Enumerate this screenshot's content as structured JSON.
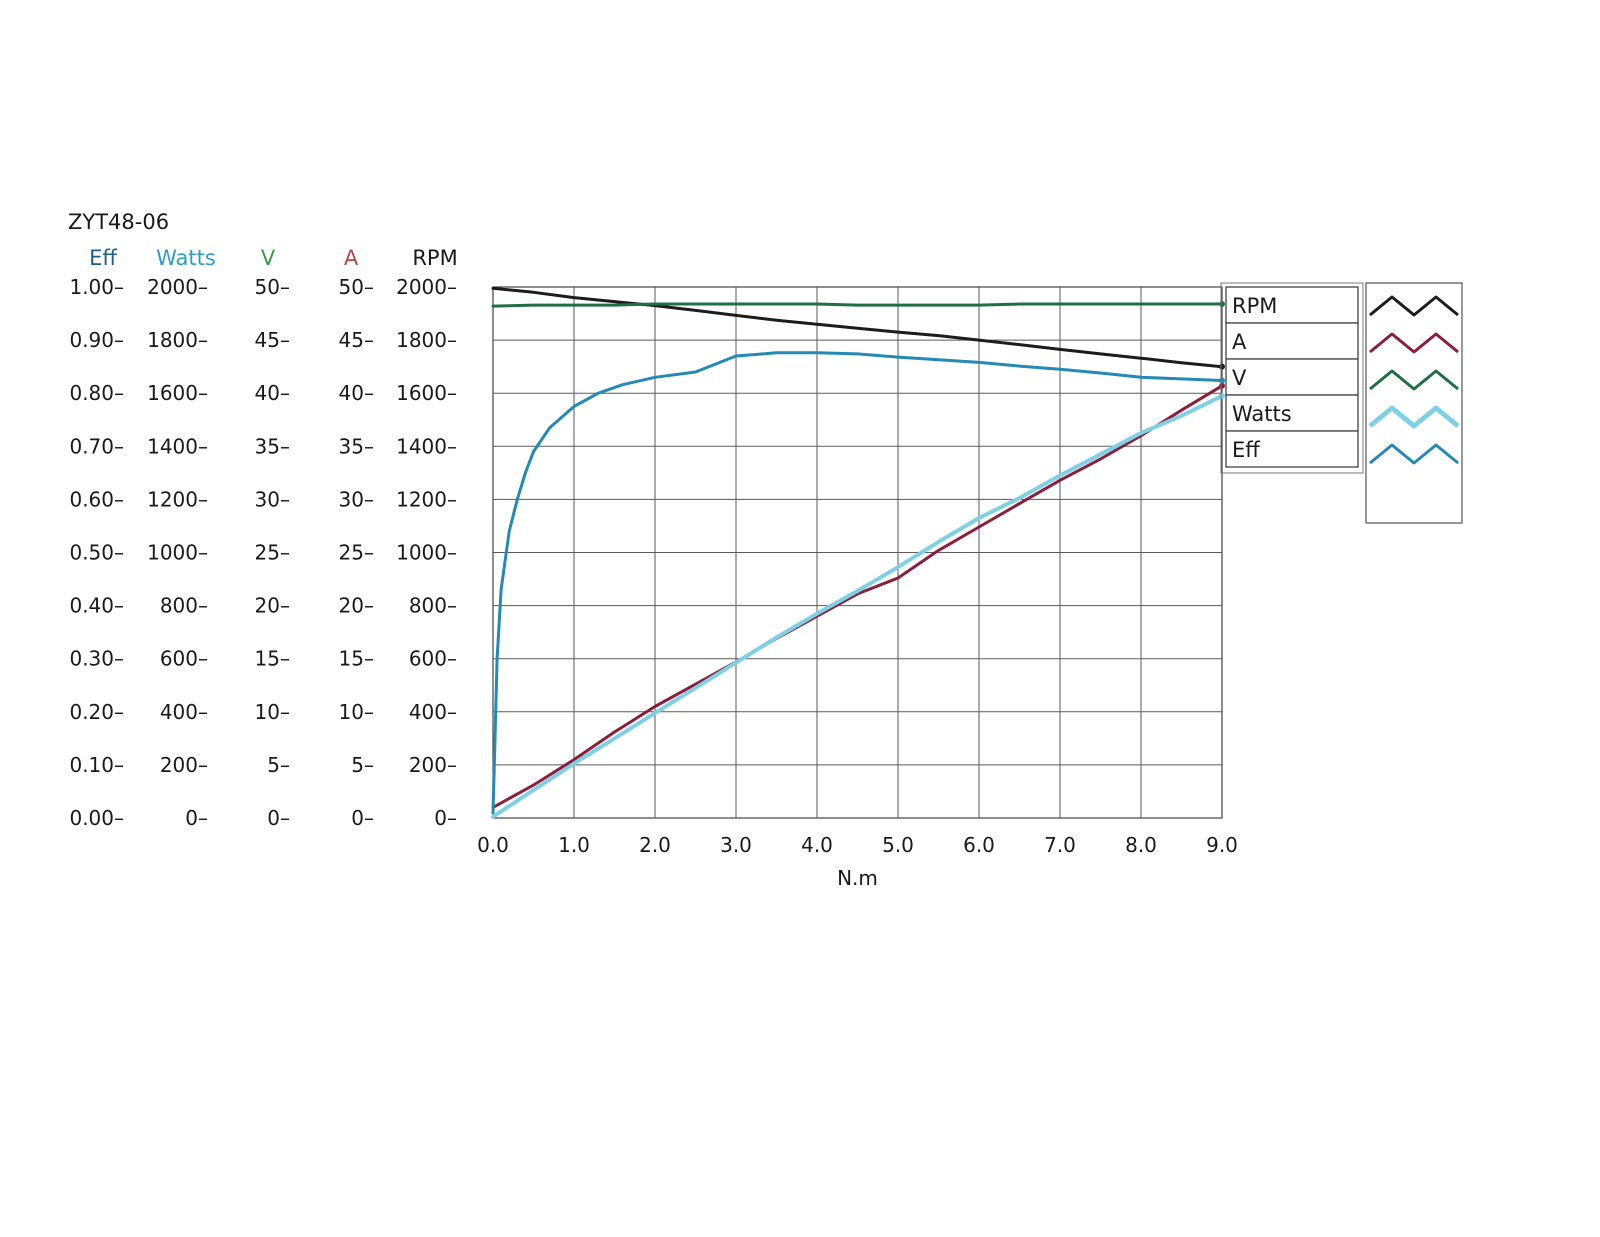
{
  "chart_data": {
    "type": "line",
    "title": "ZYT48-06",
    "xlabel": "N.m",
    "xlim": [
      0,
      9
    ],
    "x_ticks": [
      "0.0",
      "1.0",
      "2.0",
      "3.0",
      "4.0",
      "5.0",
      "6.0",
      "7.0",
      "8.0",
      "9.0"
    ],
    "grid": true,
    "legend_position": "right",
    "y_axes": [
      {
        "label": "Eff",
        "color": "#1e5f8a",
        "range": [
          0,
          1
        ],
        "ticks": [
          "0.00",
          "0.10",
          "0.20",
          "0.30",
          "0.40",
          "0.50",
          "0.60",
          "0.70",
          "0.80",
          "0.90",
          "1.00"
        ]
      },
      {
        "label": "Watts",
        "color": "#2e9cc8",
        "range": [
          0,
          2000
        ],
        "ticks": [
          "0",
          "200",
          "400",
          "600",
          "800",
          "1000",
          "1200",
          "1400",
          "1600",
          "1800",
          "2000"
        ]
      },
      {
        "label": "V",
        "color": "#3a9a4a",
        "range": [
          0,
          50
        ],
        "ticks": [
          "0",
          "5",
          "10",
          "15",
          "20",
          "25",
          "30",
          "35",
          "40",
          "45",
          "50"
        ]
      },
      {
        "label": "A",
        "color": "#b04848",
        "range": [
          0,
          50
        ],
        "ticks": [
          "0",
          "5",
          "10",
          "15",
          "20",
          "25",
          "30",
          "35",
          "40",
          "45",
          "50"
        ]
      },
      {
        "label": "RPM",
        "color": "#1a1a1a",
        "range": [
          0,
          2000
        ],
        "ticks": [
          "0",
          "200",
          "400",
          "600",
          "800",
          "1000",
          "1200",
          "1400",
          "1600",
          "1800",
          "2000"
        ]
      }
    ],
    "series": [
      {
        "name": "RPM",
        "axis": "RPM",
        "color": "#1c1c1c",
        "x": [
          0,
          0.5,
          1,
          1.5,
          2,
          2.5,
          3,
          3.5,
          4,
          4.5,
          5,
          5.5,
          6,
          6.5,
          7,
          7.5,
          8,
          8.5,
          9
        ],
        "y": [
          1995,
          1980,
          1960,
          1945,
          1930,
          1912,
          1893,
          1875,
          1860,
          1845,
          1830,
          1817,
          1800,
          1783,
          1765,
          1748,
          1732,
          1715,
          1700
        ]
      },
      {
        "name": "A",
        "axis": "A",
        "color": "#8a1e3c",
        "x": [
          0,
          0.5,
          1,
          1.5,
          2,
          2.5,
          3,
          3.5,
          4,
          4.5,
          5,
          5.5,
          6,
          6.5,
          7,
          7.5,
          8,
          8.5,
          9
        ],
        "y": [
          1.0,
          3.1,
          5.5,
          8.1,
          10.5,
          12.6,
          14.7,
          16.9,
          19.0,
          21.1,
          22.6,
          25.2,
          27.4,
          29.6,
          31.8,
          33.8,
          36.0,
          38.4,
          40.7
        ]
      },
      {
        "name": "V",
        "axis": "V",
        "color": "#1f6e45",
        "x": [
          0,
          0.5,
          1,
          1.5,
          2,
          2.5,
          3,
          3.5,
          4,
          4.5,
          5,
          5.5,
          6,
          6.5,
          7,
          7.5,
          8,
          8.5,
          9
        ],
        "y": [
          48.2,
          48.3,
          48.3,
          48.3,
          48.4,
          48.4,
          48.4,
          48.4,
          48.4,
          48.3,
          48.3,
          48.3,
          48.3,
          48.4,
          48.4,
          48.4,
          48.4,
          48.4,
          48.4
        ]
      },
      {
        "name": "Watts",
        "axis": "Watts",
        "color": "#7fd0e4",
        "x": [
          0,
          0.5,
          1,
          1.5,
          2,
          2.5,
          3,
          3.5,
          4,
          4.5,
          5,
          5.5,
          6,
          6.5,
          7,
          7.5,
          8,
          8.5,
          9
        ],
        "y": [
          5,
          105,
          205,
          300,
          395,
          490,
          585,
          680,
          770,
          855,
          945,
          1040,
          1130,
          1205,
          1290,
          1370,
          1450,
          1515,
          1590
        ]
      },
      {
        "name": "Eff",
        "axis": "Eff",
        "color": "#2489b5",
        "x": [
          0,
          0.02,
          0.05,
          0.1,
          0.2,
          0.3,
          0.4,
          0.5,
          0.7,
          1.0,
          1.3,
          1.6,
          2.0,
          2.5,
          3.0,
          3.5,
          4.0,
          4.5,
          5.0,
          5.5,
          6.0,
          6.5,
          7.0,
          7.5,
          8.0,
          8.5,
          9.0
        ],
        "y": [
          0.01,
          0.12,
          0.3,
          0.43,
          0.54,
          0.6,
          0.65,
          0.69,
          0.735,
          0.775,
          0.8,
          0.816,
          0.83,
          0.84,
          0.87,
          0.876,
          0.876,
          0.874,
          0.868,
          0.863,
          0.858,
          0.851,
          0.845,
          0.838,
          0.83,
          0.827,
          0.824
        ]
      }
    ],
    "legend": {
      "entries": [
        "RPM",
        "A",
        "V",
        "Watts",
        "Eff"
      ],
      "sample_colors": [
        "#1c1c1c",
        "#8a1e3c",
        "#1f6e45",
        "#7fd0e4",
        "#2489b5"
      ]
    }
  }
}
